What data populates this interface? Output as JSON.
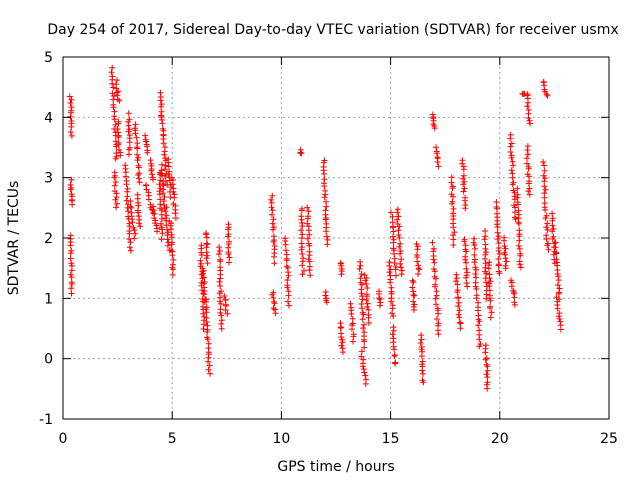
{
  "chart_data": {
    "type": "scatter",
    "title": "Day 254 of 2017, Sidereal Day-to-day VTEC variation (SDTVAR) for receiver usmx",
    "xlabel": "GPS time / hours",
    "ylabel": "SDTVAR / TECUs",
    "xlim": [
      0,
      25
    ],
    "ylim": [
      -1,
      5
    ],
    "xticks": [
      0,
      5,
      10,
      15,
      20,
      25
    ],
    "yticks": [
      -1,
      0,
      1,
      2,
      3,
      4,
      5
    ],
    "grid": true,
    "marker": "+",
    "series": [
      {
        "name": "SDTVAR",
        "color": "#ff0000",
        "tracks": [
          {
            "x0": 0.35,
            "y0": 4.35,
            "x1": 0.4,
            "y1": 3.7
          },
          {
            "x0": 0.35,
            "y0": 2.95,
            "x1": 0.4,
            "y1": 2.55
          },
          {
            "x0": 0.35,
            "y0": 2.05,
            "x1": 0.4,
            "y1": 1.1
          },
          {
            "x0": 2.25,
            "y0": 4.8,
            "x1": 2.45,
            "y1": 3.3
          },
          {
            "x0": 2.35,
            "y0": 3.1,
            "x1": 2.45,
            "y1": 2.5
          },
          {
            "x0": 2.45,
            "y0": 4.6,
            "x1": 2.55,
            "y1": 4.25
          },
          {
            "x0": 2.5,
            "y0": 3.95,
            "x1": 2.6,
            "y1": 3.35
          },
          {
            "x0": 2.85,
            "y0": 3.2,
            "x1": 3.1,
            "y1": 1.8
          },
          {
            "x0": 3.0,
            "y0": 4.05,
            "x1": 3.05,
            "y1": 3.4
          },
          {
            "x0": 3.1,
            "y0": 2.6,
            "x1": 3.3,
            "y1": 2.0
          },
          {
            "x0": 3.3,
            "y0": 3.9,
            "x1": 3.5,
            "y1": 2.9
          },
          {
            "x0": 3.4,
            "y0": 2.7,
            "x1": 3.5,
            "y1": 2.2
          },
          {
            "x0": 3.75,
            "y0": 3.7,
            "x1": 3.85,
            "y1": 3.4
          },
          {
            "x0": 3.8,
            "y0": 2.9,
            "x1": 4.1,
            "y1": 2.4
          },
          {
            "x0": 4.0,
            "y0": 3.3,
            "x1": 4.1,
            "y1": 2.95
          },
          {
            "x0": 4.1,
            "y0": 2.5,
            "x1": 4.3,
            "y1": 2.1
          },
          {
            "x0": 4.4,
            "y0": 3.1,
            "x1": 4.55,
            "y1": 2.0
          },
          {
            "x0": 4.45,
            "y0": 4.4,
            "x1": 4.6,
            "y1": 3.7
          },
          {
            "x0": 4.5,
            "y0": 3.2,
            "x1": 4.65,
            "y1": 2.5
          },
          {
            "x0": 4.6,
            "y0": 3.7,
            "x1": 4.75,
            "y1": 2.9
          },
          {
            "x0": 4.7,
            "y0": 2.5,
            "x1": 4.85,
            "y1": 1.8
          },
          {
            "x0": 4.8,
            "y0": 3.3,
            "x1": 4.95,
            "y1": 2.7
          },
          {
            "x0": 4.9,
            "y0": 2.3,
            "x1": 5.05,
            "y1": 1.4
          },
          {
            "x0": 5.0,
            "y0": 3.0,
            "x1": 5.15,
            "y1": 2.35
          },
          {
            "x0": 6.3,
            "y0": 1.9,
            "x1": 6.45,
            "y1": 0.5
          },
          {
            "x0": 6.4,
            "y0": 1.5,
            "x1": 6.5,
            "y1": 0.95
          },
          {
            "x0": 6.55,
            "y0": 2.1,
            "x1": 6.6,
            "y1": 1.6
          },
          {
            "x0": 6.55,
            "y0": 1.0,
            "x1": 6.7,
            "y1": -0.25
          },
          {
            "x0": 7.15,
            "y0": 1.85,
            "x1": 7.25,
            "y1": 0.5
          },
          {
            "x0": 7.4,
            "y0": 1.05,
            "x1": 7.5,
            "y1": 0.75
          },
          {
            "x0": 7.55,
            "y0": 2.25,
            "x1": 7.6,
            "y1": 1.6
          },
          {
            "x0": 9.55,
            "y0": 2.7,
            "x1": 9.7,
            "y1": 1.6
          },
          {
            "x0": 9.6,
            "y0": 1.1,
            "x1": 9.7,
            "y1": 0.75
          },
          {
            "x0": 10.2,
            "y0": 2.0,
            "x1": 10.35,
            "y1": 0.9
          },
          {
            "x0": 10.85,
            "y0": 3.45,
            "x1": 10.9,
            "y1": 3.4
          },
          {
            "x0": 10.9,
            "y0": 2.5,
            "x1": 11.0,
            "y1": 1.4
          },
          {
            "x0": 11.2,
            "y0": 2.5,
            "x1": 11.3,
            "y1": 1.4
          },
          {
            "x0": 11.95,
            "y0": 3.3,
            "x1": 12.1,
            "y1": 1.9
          },
          {
            "x0": 12.0,
            "y0": 1.1,
            "x1": 12.1,
            "y1": 0.95
          },
          {
            "x0": 12.7,
            "y0": 1.6,
            "x1": 12.75,
            "y1": 1.4
          },
          {
            "x0": 12.7,
            "y0": 0.6,
            "x1": 12.8,
            "y1": 0.1
          },
          {
            "x0": 13.2,
            "y0": 0.9,
            "x1": 13.3,
            "y1": 0.3
          },
          {
            "x0": 13.6,
            "y0": 1.6,
            "x1": 13.8,
            "y1": 0.2
          },
          {
            "x0": 13.65,
            "y0": 0.1,
            "x1": 13.9,
            "y1": -0.4
          },
          {
            "x0": 13.85,
            "y0": 1.4,
            "x1": 14.0,
            "y1": 0.6
          },
          {
            "x0": 14.45,
            "y0": 1.1,
            "x1": 14.55,
            "y1": 0.9
          },
          {
            "x0": 14.95,
            "y0": 1.6,
            "x1": 15.1,
            "y1": 0.7
          },
          {
            "x0": 15.05,
            "y0": 2.4,
            "x1": 15.25,
            "y1": 1.4
          },
          {
            "x0": 15.1,
            "y0": 0.5,
            "x1": 15.2,
            "y1": -0.1
          },
          {
            "x0": 15.3,
            "y0": 2.5,
            "x1": 15.5,
            "y1": 1.4
          },
          {
            "x0": 16.0,
            "y0": 1.3,
            "x1": 16.1,
            "y1": 0.8
          },
          {
            "x0": 16.2,
            "y0": 1.9,
            "x1": 16.3,
            "y1": 1.4
          },
          {
            "x0": 16.4,
            "y0": 0.4,
            "x1": 16.5,
            "y1": -0.4
          },
          {
            "x0": 16.9,
            "y0": 4.05,
            "x1": 17.0,
            "y1": 3.8
          },
          {
            "x0": 16.95,
            "y0": 1.9,
            "x1": 17.2,
            "y1": 0.4
          },
          {
            "x0": 17.1,
            "y0": 3.5,
            "x1": 17.2,
            "y1": 3.2
          },
          {
            "x0": 17.8,
            "y0": 3.0,
            "x1": 17.9,
            "y1": 1.9
          },
          {
            "x0": 18.0,
            "y0": 1.4,
            "x1": 18.2,
            "y1": 0.5
          },
          {
            "x0": 18.3,
            "y0": 3.3,
            "x1": 18.4,
            "y1": 2.5
          },
          {
            "x0": 18.4,
            "y0": 2.0,
            "x1": 18.5,
            "y1": 1.2
          },
          {
            "x0": 18.8,
            "y0": 2.0,
            "x1": 19.1,
            "y1": 0.2
          },
          {
            "x0": 19.3,
            "y0": 2.1,
            "x1": 19.4,
            "y1": 1.0
          },
          {
            "x0": 19.35,
            "y0": 0.2,
            "x1": 19.45,
            "y1": -0.5
          },
          {
            "x0": 19.5,
            "y0": 1.6,
            "x1": 19.6,
            "y1": 0.7
          },
          {
            "x0": 19.85,
            "y0": 2.6,
            "x1": 20.0,
            "y1": 1.4
          },
          {
            "x0": 20.2,
            "y0": 2.0,
            "x1": 20.3,
            "y1": 1.5
          },
          {
            "x0": 20.5,
            "y0": 3.7,
            "x1": 20.7,
            "y1": 2.3
          },
          {
            "x0": 20.55,
            "y0": 1.3,
            "x1": 20.7,
            "y1": 0.9
          },
          {
            "x0": 20.8,
            "y0": 2.8,
            "x1": 20.95,
            "y1": 1.5
          },
          {
            "x0": 21.0,
            "y0": 4.4,
            "x1": 21.1,
            "y1": 4.4
          },
          {
            "x0": 21.25,
            "y0": 4.4,
            "x1": 21.35,
            "y1": 3.9
          },
          {
            "x0": 21.25,
            "y0": 3.5,
            "x1": 21.35,
            "y1": 2.7
          },
          {
            "x0": 22.0,
            "y0": 4.6,
            "x1": 22.15,
            "y1": 4.35
          },
          {
            "x0": 22.0,
            "y0": 3.25,
            "x1": 22.2,
            "y1": 1.8
          },
          {
            "x0": 22.4,
            "y0": 2.4,
            "x1": 22.5,
            "y1": 1.6
          },
          {
            "x0": 22.55,
            "y0": 1.9,
            "x1": 22.75,
            "y1": 1.0
          },
          {
            "x0": 22.6,
            "y0": 1.0,
            "x1": 22.8,
            "y1": 0.5
          }
        ]
      }
    ]
  }
}
